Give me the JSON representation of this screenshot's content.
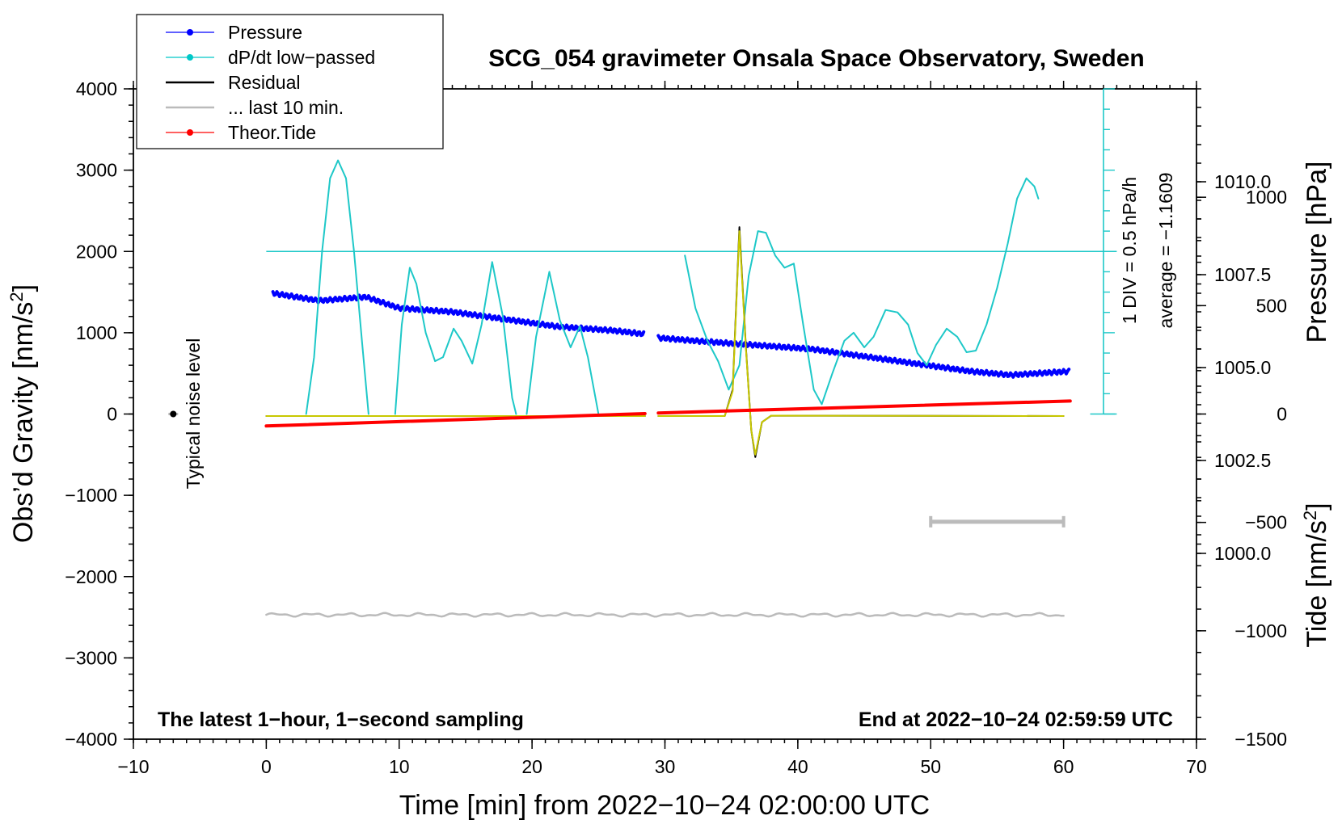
{
  "chart_data": {
    "type": "line",
    "title": "SCG_054 gravimeter Onsala Space Observatory, Sweden",
    "xlabel": "Time [min] from 2022−10−24 02:00:00 UTC",
    "ylabel_left": "Obs’d Gravity [nm/s",
    "ylabel_left_sup": "2",
    "ylabel_left_close": "]",
    "ylabel_pressure": "Pressure [hPa]",
    "ylabel_tide": "Tide [nm/s",
    "ylabel_tide_sup": "2",
    "ylabel_tide_close": "]",
    "xlim": [
      -10,
      70
    ],
    "ylim": [
      -4000,
      4000
    ],
    "pressure_lim": [
      995.0,
      1012.5
    ],
    "tide_lim": [
      -1500,
      1500
    ],
    "x_ticks": [
      "−10",
      "0",
      "10",
      "20",
      "30",
      "40",
      "50",
      "60",
      "70"
    ],
    "y_ticks": [
      "4000",
      "3000",
      "2000",
      "1000",
      "0",
      "−1000",
      "−2000",
      "−3000",
      "−4000"
    ],
    "pressure_ticks": [
      "1010.0",
      "1007.5",
      "1005.0",
      "1002.5",
      "1000.0"
    ],
    "tide_ticks": [
      "1000",
      "500",
      "0",
      "−500",
      "−1000",
      "−1500"
    ],
    "legend": [
      {
        "label": "Pressure",
        "color": "#0000ff",
        "style": "line-dot"
      },
      {
        "label": "dP/dt low−passed",
        "color": "#00c8c8",
        "style": "line-dot"
      },
      {
        "label": "Residual",
        "color": "#000000",
        "style": "line"
      },
      {
        "label": "... last 10 min.",
        "color": "#bbbbbb",
        "style": "line"
      },
      {
        "label": "Theor.Tide",
        "color": "#ff0000",
        "style": "line-dot"
      }
    ],
    "annotations": {
      "scale_div": "1 DIV = 0.5 hPa/h",
      "average": "average = −1.1609",
      "noise": "Typical noise level",
      "bottom_left": "The latest 1−hour, 1−second sampling",
      "bottom_right": "End at 2022−10−24 02:59:59 UTC"
    },
    "series": [
      {
        "name": "Pressure",
        "axis": "pressure",
        "color": "#0000ff",
        "segments": [
          [
            [
              0.5,
              1007.0
            ],
            [
              4,
              1006.8
            ],
            [
              7.5,
              1006.9
            ],
            [
              10,
              1006.6
            ],
            [
              14,
              1006.5
            ],
            [
              18,
              1006.3
            ],
            [
              22,
              1006.1
            ],
            [
              26,
              1006.0
            ],
            [
              28.5,
              1005.9
            ]
          ],
          [
            [
              29.5,
              1005.8
            ],
            [
              33,
              1005.7
            ],
            [
              37,
              1005.6
            ],
            [
              41,
              1005.5
            ],
            [
              45,
              1005.3
            ],
            [
              49,
              1005.1
            ],
            [
              53,
              1004.9
            ],
            [
              56,
              1004.8
            ],
            [
              60.5,
              1004.9
            ]
          ]
        ]
      },
      {
        "name": "dP/dt low-passed",
        "axis": "gravity",
        "color": "#1ec8c8",
        "segments": [
          [
            [
              3,
              0
            ],
            [
              3.6,
              700
            ],
            [
              4.2,
              2000
            ],
            [
              4.8,
              2900
            ],
            [
              5.4,
              3120
            ],
            [
              6,
              2900
            ],
            [
              6.6,
              2000
            ],
            [
              7.2,
              900
            ],
            [
              7.7,
              0
            ]
          ],
          [
            [
              9.7,
              0
            ],
            [
              10.2,
              1100
            ],
            [
              10.8,
              1800
            ],
            [
              11.3,
              1600
            ],
            [
              12,
              1000
            ],
            [
              12.7,
              650
            ],
            [
              13.3,
              700
            ],
            [
              14.1,
              1050
            ],
            [
              14.7,
              900
            ],
            [
              15.5,
              620
            ],
            [
              16.2,
              1100
            ],
            [
              17,
              1870
            ],
            [
              17.8,
              1200
            ],
            [
              18.5,
              200
            ],
            [
              18.8,
              0
            ]
          ],
          [
            [
              19.6,
              0
            ],
            [
              20.3,
              950
            ],
            [
              21.3,
              1750
            ],
            [
              22.1,
              1150
            ],
            [
              22.9,
              820
            ],
            [
              23.6,
              1080
            ],
            [
              24.2,
              700
            ],
            [
              25,
              0
            ]
          ]
        ]
      },
      {
        "name": "dP/dt low-passed 2",
        "axis": "gravity",
        "color": "#1ec8c8",
        "segments": [
          [
            [
              31.5,
              1950
            ],
            [
              32.3,
              1300
            ],
            [
              33.2,
              900
            ],
            [
              34,
              650
            ],
            [
              34.8,
              300
            ],
            [
              35.6,
              600
            ],
            [
              36.3,
              1700
            ],
            [
              37,
              2250
            ],
            [
              37.6,
              2230
            ],
            [
              38.3,
              1950
            ],
            [
              39,
              1800
            ],
            [
              39.7,
              1850
            ],
            [
              40.4,
              1100
            ],
            [
              41.2,
              300
            ],
            [
              41.8,
              120
            ],
            [
              42.6,
              500
            ],
            [
              43.5,
              900
            ],
            [
              44.2,
              1000
            ],
            [
              45,
              820
            ],
            [
              45.7,
              950
            ],
            [
              46.6,
              1280
            ],
            [
              47.5,
              1250
            ],
            [
              48.3,
              1100
            ],
            [
              49,
              750
            ],
            [
              49.7,
              600
            ],
            [
              50.4,
              850
            ],
            [
              51.2,
              1050
            ],
            [
              52,
              950
            ],
            [
              52.7,
              760
            ],
            [
              53.4,
              780
            ],
            [
              54.2,
              1100
            ],
            [
              55,
              1550
            ],
            [
              55.8,
              2100
            ],
            [
              56.5,
              2650
            ],
            [
              57.2,
              2900
            ],
            [
              57.8,
              2800
            ],
            [
              58.1,
              2650
            ]
          ]
        ]
      },
      {
        "name": "Residual",
        "axis": "gravity",
        "color": "#000000",
        "segments": [
          [
            [
              0,
              -25
            ],
            [
              28.5,
              -25
            ]
          ],
          [
            [
              29.5,
              -25
            ],
            [
              34.5,
              -25
            ],
            [
              35.1,
              300
            ],
            [
              35.6,
              2300
            ],
            [
              36.1,
              800
            ],
            [
              36.5,
              -200
            ],
            [
              36.8,
              -530
            ],
            [
              37.3,
              -100
            ],
            [
              38,
              -20
            ],
            [
              60,
              -25
            ]
          ]
        ]
      },
      {
        "name": "Residual (yellow)",
        "axis": "gravity",
        "color": "#c8c800",
        "segments": [
          [
            [
              0,
              -25
            ],
            [
              28.5,
              -25
            ]
          ],
          [
            [
              29.5,
              -25
            ],
            [
              34.5,
              -25
            ],
            [
              35.1,
              280
            ],
            [
              35.6,
              2250
            ],
            [
              36.1,
              780
            ],
            [
              36.5,
              -200
            ],
            [
              36.8,
              -500
            ],
            [
              37.3,
              -100
            ],
            [
              38,
              -20
            ],
            [
              60,
              -25
            ]
          ]
        ]
      },
      {
        "name": "... last 10 min.",
        "axis": "gravity",
        "color": "#bbbbbb",
        "segments": [
          [
            [
              0,
              -2470
            ],
            [
              60,
              -2470
            ]
          ]
        ]
      },
      {
        "name": "Theor.Tide",
        "axis": "tide",
        "color": "#ff0000",
        "segments": [
          [
            [
              0,
              -55
            ],
            [
              28.5,
              2
            ]
          ],
          [
            [
              29.5,
              5
            ],
            [
              60.5,
              60
            ]
          ]
        ]
      }
    ],
    "noise_bar_range": [
      50,
      60
    ],
    "noise_bar_value_gravity": -1325,
    "noise_dot": {
      "x": -7,
      "y": 0
    }
  }
}
